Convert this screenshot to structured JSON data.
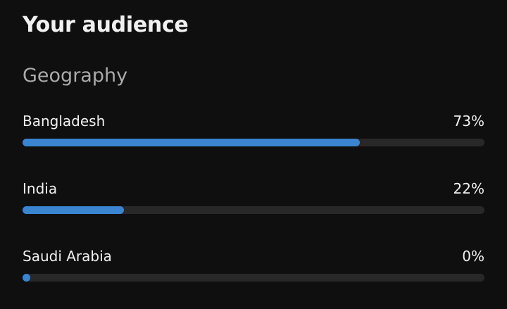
{
  "chart_data": {
    "type": "bar",
    "orientation": "horizontal",
    "title": "Your audience",
    "subtitle": "Geography",
    "categories": [
      "Bangladesh",
      "India",
      "Saudi Arabia"
    ],
    "values": [
      73,
      22,
      0
    ],
    "value_labels": [
      "73%",
      "22%",
      "0%"
    ],
    "xlim": [
      0,
      100
    ],
    "color": "#3a84d0"
  }
}
